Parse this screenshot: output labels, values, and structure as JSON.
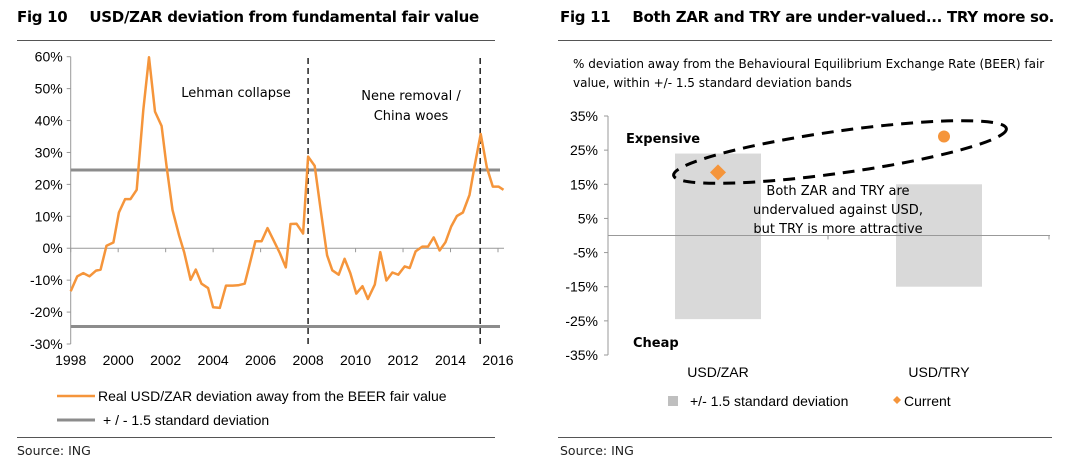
{
  "left": {
    "title_num": "Fig 10",
    "title": "USD/ZAR deviation from fundamental fair value",
    "source": "Source: ING"
  },
  "right": {
    "title_num": "Fig 11",
    "title": "Both ZAR and TRY are under-valued...  TRY more so.",
    "subtitle": "% deviation away from the Behavioural Equilibrium Exchange Rate (BEER) fair value, within +/- 1.5 standard deviation bands",
    "source": "Source: ING"
  },
  "colors": {
    "line": "#F5953B",
    "band": "#8C8C8C",
    "bar": "#D9D9D9",
    "marker": "#F5953B"
  },
  "chart_data": [
    {
      "type": "line",
      "xlim": [
        1998,
        2016.3
      ],
      "ylim": [
        -30,
        60
      ],
      "x_ticks": [
        "1998",
        "2000",
        "2002",
        "2004",
        "2006",
        "2008",
        "2010",
        "2012",
        "2014",
        "2016"
      ],
      "y_ticks": [
        "60%",
        "50%",
        "40%",
        "30%",
        "20%",
        "10%",
        "0%",
        "-10%",
        "-20%",
        "-30%"
      ],
      "series": [
        {
          "name": "Real USD/ZAR deviation away from the BEER fair value",
          "x": [
            1998.0,
            1998.28,
            1998.53,
            1998.79,
            1999.07,
            1999.26,
            1999.51,
            1999.8,
            2000.03,
            2000.29,
            2000.52,
            2000.78,
            2001.06,
            2001.3,
            2001.55,
            2001.83,
            2002.04,
            2002.29,
            2002.57,
            2002.78,
            2003.05,
            2003.27,
            2003.51,
            2003.79,
            2004.0,
            2004.28,
            2004.54,
            2004.82,
            2005.05,
            2005.33,
            2005.52,
            2005.78,
            2006.04,
            2006.29,
            2006.53,
            2006.81,
            2007.06,
            2007.26,
            2007.51,
            2007.79,
            2008.0,
            2008.28,
            2008.53,
            2008.8,
            2009.02,
            2009.29,
            2009.54,
            2009.78,
            2010.03,
            2010.29,
            2010.52,
            2010.81,
            2011.04,
            2011.3,
            2011.55,
            2011.8,
            2012.07,
            2012.28,
            2012.53,
            2012.81,
            2013.05,
            2013.29,
            2013.54,
            2013.79,
            2014.03,
            2014.27,
            2014.52,
            2014.8,
            2015.01,
            2015.27,
            2015.53,
            2015.78,
            2016.02,
            2016.23
          ],
          "y": [
            -13.5,
            -8.8,
            -7.8,
            -8.8,
            -7,
            -6.7,
            0.8,
            1.8,
            11.2,
            15.4,
            15.4,
            18.3,
            43.3,
            59.8,
            42.8,
            38.3,
            25.6,
            12,
            3.9,
            -1.3,
            -9.9,
            -6.7,
            -11.1,
            -12.5,
            -18.5,
            -18.7,
            -11.7,
            -11.7,
            -11.6,
            -11.1,
            -5.6,
            2.2,
            2.2,
            6.3,
            2.7,
            -1.5,
            -6,
            7.6,
            7.7,
            4.6,
            28.7,
            25.8,
            12,
            -2.2,
            -6.9,
            -8.3,
            -3.3,
            -7.8,
            -14.2,
            -11.9,
            -15.9,
            -11.4,
            -1.2,
            -10.1,
            -7.6,
            -8.3,
            -5.7,
            -6.2,
            -1,
            0.5,
            0.5,
            3.4,
            -0.7,
            1.9,
            6.8,
            10.1,
            11.2,
            16.7,
            25.6,
            35.8,
            25.4,
            19.3,
            19.3,
            18.3
          ]
        },
        {
          "name": "+ / - 1.5 standard deviation",
          "upper": 24.5,
          "lower": -24.5
        }
      ],
      "events": [
        {
          "x": 2008.0,
          "label": "Lehman collapse"
        },
        {
          "x": 2015.25,
          "label_lines": [
            "Nene removal /",
            "China woes"
          ]
        }
      ],
      "legend_position": "bottom"
    },
    {
      "type": "bar",
      "categories": [
        "USD/ZAR",
        "USD/TRY"
      ],
      "ylim": [
        -35,
        35
      ],
      "y_ticks": [
        "35%",
        "25%",
        "15%",
        "5%",
        "-5%",
        "-15%",
        "-25%",
        "-35%"
      ],
      "bands": {
        "name": "+/- 1.5 standard deviation",
        "low": [
          -24.5,
          -15
        ],
        "high": [
          24,
          15
        ]
      },
      "current": {
        "name": "Current",
        "values": [
          18.5,
          29
        ]
      },
      "annotations": {
        "expensive": "Expensive",
        "cheap": "Cheap",
        "note_lines": [
          "Both ZAR and  TRY are",
          "undervalued against USD,",
          "but TRY is more attractive"
        ]
      },
      "legend_position": "bottom"
    }
  ]
}
